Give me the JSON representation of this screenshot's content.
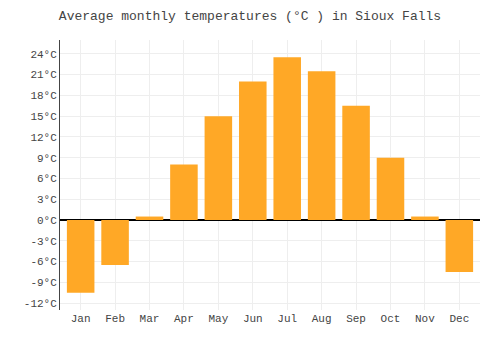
{
  "chart_data": {
    "type": "bar",
    "title": "Average monthly temperatures (°C ) in Sioux Falls",
    "categories": [
      "Jan",
      "Feb",
      "Mar",
      "Apr",
      "May",
      "Jun",
      "Jul",
      "Aug",
      "Sep",
      "Oct",
      "Nov",
      "Dec"
    ],
    "values": [
      -10.5,
      -6.5,
      0.5,
      8.0,
      15.0,
      20.0,
      23.5,
      21.5,
      16.5,
      9.0,
      0.5,
      -7.5
    ],
    "color": "#FFA826",
    "ylim": [
      -13,
      26
    ],
    "yticks": [
      {
        "value": -12,
        "label": "-12°C"
      },
      {
        "value": -9,
        "label": "-9°C"
      },
      {
        "value": -6,
        "label": "-6°C"
      },
      {
        "value": -3,
        "label": "-3°C"
      },
      {
        "value": 0,
        "label": "0°C"
      },
      {
        "value": 3,
        "label": "3°C"
      },
      {
        "value": 6,
        "label": "6°C"
      },
      {
        "value": 9,
        "label": "9°C"
      },
      {
        "value": 12,
        "label": "12°C"
      },
      {
        "value": 15,
        "label": "15°C"
      },
      {
        "value": 18,
        "label": "18°C"
      },
      {
        "value": 21,
        "label": "21°C"
      },
      {
        "value": 24,
        "label": "24°C"
      }
    ],
    "grid": true
  }
}
